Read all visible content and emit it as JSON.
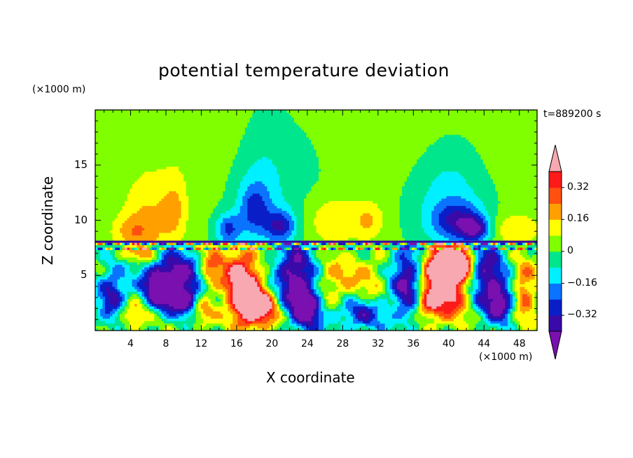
{
  "chart_data": {
    "type": "heatmap",
    "title": "potential temperature deviation",
    "xlabel": "X coordinate",
    "ylabel": "Z coordinate",
    "x_unit": "(×1000 m)",
    "y_unit": "(×1000 m)",
    "time_label": "t=889200 s",
    "xlim": [
      0,
      50
    ],
    "ylim": [
      0,
      20
    ],
    "x_ticks": [
      "4",
      "8",
      "12",
      "16",
      "20",
      "24",
      "28",
      "32",
      "36",
      "40",
      "44",
      "48"
    ],
    "y_ticks": [
      "5",
      "10",
      "15"
    ],
    "colorbar": {
      "tick_labels": [
        "0.32",
        "0.16",
        "0",
        "−0.16",
        "−0.32"
      ],
      "levels": [
        -0.4,
        -0.32,
        -0.24,
        -0.16,
        -0.08,
        0,
        0.08,
        0.16,
        0.24,
        0.32,
        0.4
      ],
      "colors": [
        "#7a10b0",
        "#3a0aa8",
        "#0a1ec8",
        "#0a74ff",
        "#00f0ff",
        "#00e68c",
        "#80ff00",
        "#ffff00",
        "#ffa000",
        "#ff5010",
        "#ff1a1a",
        "#f8a8b0"
      ],
      "extend": "both"
    },
    "stratosphere_pattern": "columns of negative anomaly (cyan/blue) above x≈16–22 and x≈36–44; positive yellow plumes near x≈4–8, 24–30, 44–50",
    "boundary_height": 8,
    "regions_below_8km": "turbulent mix with purple (~−0.4) swirls at x≈6–12, 22–26, 33–38, 42–46 and pink (>0.4) cores at x≈15–18 and 38–42"
  }
}
